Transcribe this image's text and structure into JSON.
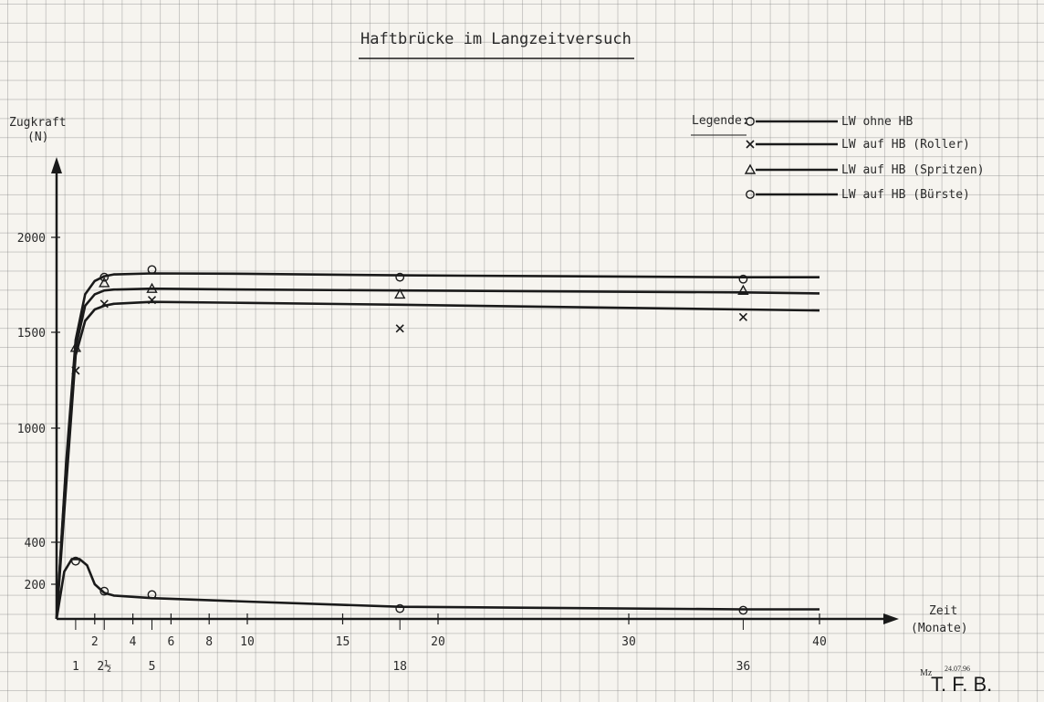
{
  "chart_data": {
    "type": "line",
    "title": "Haftbrücke im Langzeitversuch",
    "ylabel_line1": "Zugkraft",
    "ylabel_line2": "(N)",
    "xlabel_line1": "Zeit",
    "xlabel_line2": "(Monate)",
    "legend_title": "Legende:",
    "legend_position": "top-right",
    "grid": true,
    "xlim": [
      0,
      44
    ],
    "ylim": [
      0,
      2400
    ],
    "x_ticks": [
      {
        "v": 2,
        "label": "2"
      },
      {
        "v": 4,
        "label": "4"
      },
      {
        "v": 6,
        "label": "6"
      },
      {
        "v": 8,
        "label": "8"
      },
      {
        "v": 10,
        "label": "10"
      },
      {
        "v": 15,
        "label": "15"
      },
      {
        "v": 20,
        "label": "20"
      },
      {
        "v": 30,
        "label": "30"
      },
      {
        "v": 40,
        "label": "40"
      }
    ],
    "x_ticks_measured": [
      {
        "v": 1,
        "label": "1"
      },
      {
        "v": 2.5,
        "label": "2½"
      },
      {
        "v": 5,
        "label": "5"
      },
      {
        "v": 18,
        "label": "18"
      },
      {
        "v": 36,
        "label": "36"
      }
    ],
    "y_ticks": [
      {
        "v": 200,
        "label": "200"
      },
      {
        "v": 400,
        "label": "400"
      },
      {
        "v": 1000,
        "label": "1000"
      },
      {
        "v": 1500,
        "label": "1500"
      },
      {
        "v": 2000,
        "label": "2000"
      }
    ],
    "series": [
      {
        "name": "LW ohne HB",
        "marker": "circle",
        "x": [
          0,
          1,
          2.5,
          5,
          18,
          36
        ],
        "y": [
          0,
          310,
          160,
          140,
          60,
          50
        ],
        "curve_x": [
          0,
          0.4,
          0.8,
          1.2,
          1.6,
          2.0,
          2.5,
          3,
          5,
          10,
          18,
          36,
          40
        ],
        "curve_y": [
          0,
          260,
          320,
          320,
          290,
          200,
          150,
          135,
          120,
          100,
          70,
          55,
          55
        ]
      },
      {
        "name": "LW auf HB (Roller)",
        "marker": "x",
        "x": [
          0,
          1,
          2.5,
          5,
          18,
          36
        ],
        "y": [
          0,
          1300,
          1650,
          1670,
          1520,
          1580
        ],
        "curve_x": [
          0,
          0.5,
          1.0,
          1.5,
          2.0,
          2.5,
          3.0,
          5,
          10,
          18,
          36,
          40
        ],
        "curve_y": [
          0,
          700,
          1380,
          1560,
          1620,
          1640,
          1650,
          1660,
          1655,
          1645,
          1620,
          1615
        ]
      },
      {
        "name": "LW auf HB (Spritzen)",
        "marker": "triangle",
        "x": [
          0,
          1,
          2.5,
          5,
          18,
          36
        ],
        "y": [
          0,
          1420,
          1760,
          1730,
          1700,
          1720
        ],
        "curve_x": [
          0,
          0.5,
          1.0,
          1.5,
          2.0,
          2.5,
          3.0,
          5,
          10,
          18,
          36,
          40
        ],
        "curve_y": [
          0,
          800,
          1420,
          1640,
          1700,
          1720,
          1725,
          1730,
          1725,
          1720,
          1710,
          1705
        ]
      },
      {
        "name": "LW auf HB (Bürste)",
        "marker": "circle",
        "x": [
          0,
          2.5,
          5,
          18,
          36
        ],
        "y": [
          0,
          1790,
          1830,
          1790,
          1780
        ],
        "curve_x": [
          0,
          0.5,
          1.0,
          1.5,
          2.0,
          2.5,
          3.0,
          5,
          10,
          18,
          36,
          40
        ],
        "curve_y": [
          0,
          820,
          1460,
          1700,
          1770,
          1795,
          1805,
          1810,
          1808,
          1800,
          1790,
          1790
        ]
      }
    ]
  },
  "signature": {
    "initials": "Mz",
    "date": "24.07.96",
    "org": "T. F. B."
  }
}
